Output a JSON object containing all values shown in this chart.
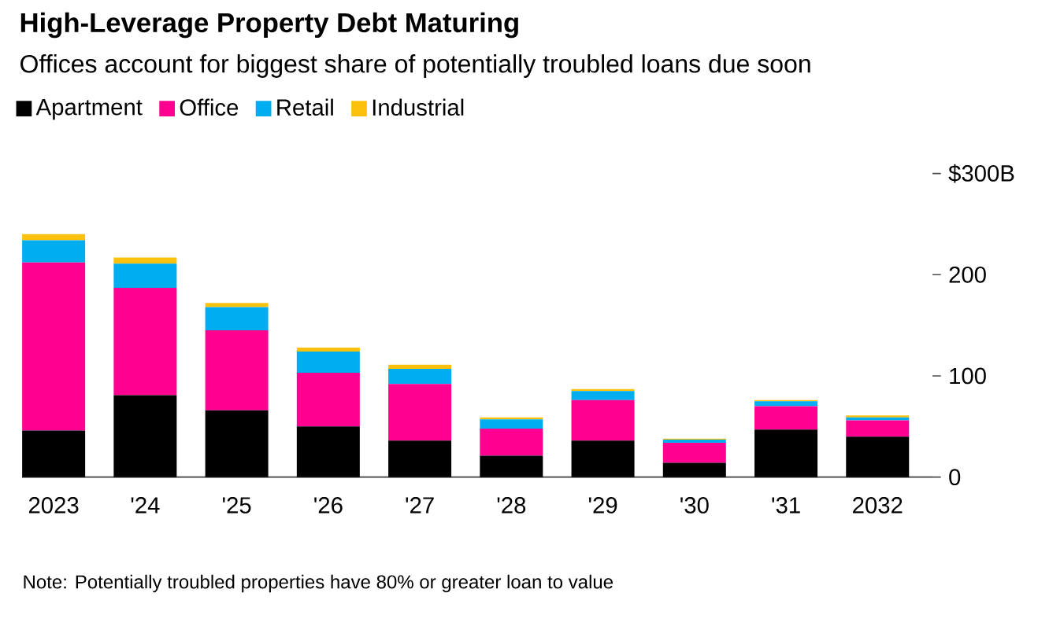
{
  "chart_data": {
    "type": "bar",
    "stacked": true,
    "title": "High-Leverage Property Debt Maturing",
    "subtitle": "Offices account for biggest share of potentially troubled loans due soon",
    "categories": [
      "2023",
      "'24",
      "'25",
      "'26",
      "'27",
      "'28",
      "'29",
      "'30",
      "'31",
      "2032"
    ],
    "series": [
      {
        "name": "Apartment",
        "color": "#000000",
        "values": [
          46,
          81,
          66,
          50,
          36,
          21,
          36,
          14,
          47,
          40
        ]
      },
      {
        "name": "Office",
        "color": "#ff0090",
        "values": [
          166,
          106,
          79,
          53,
          56,
          27,
          40,
          20,
          23,
          16
        ]
      },
      {
        "name": "Retail",
        "color": "#00adef",
        "values": [
          22,
          24,
          23,
          21,
          15,
          9,
          9,
          3,
          5,
          3
        ]
      },
      {
        "name": "Industrial",
        "color": "#fcc10d",
        "values": [
          6,
          6,
          4,
          4,
          4,
          2,
          2,
          1,
          1,
          2
        ]
      }
    ],
    "ylim": [
      0,
      300
    ],
    "yticks": [
      0,
      100,
      200,
      {
        "value": 300,
        "label": "$300B"
      }
    ],
    "legend": "top left",
    "grid": false,
    "annotations": [
      "Note: Potentially troubled properties have 80% or greater loan to value"
    ]
  }
}
